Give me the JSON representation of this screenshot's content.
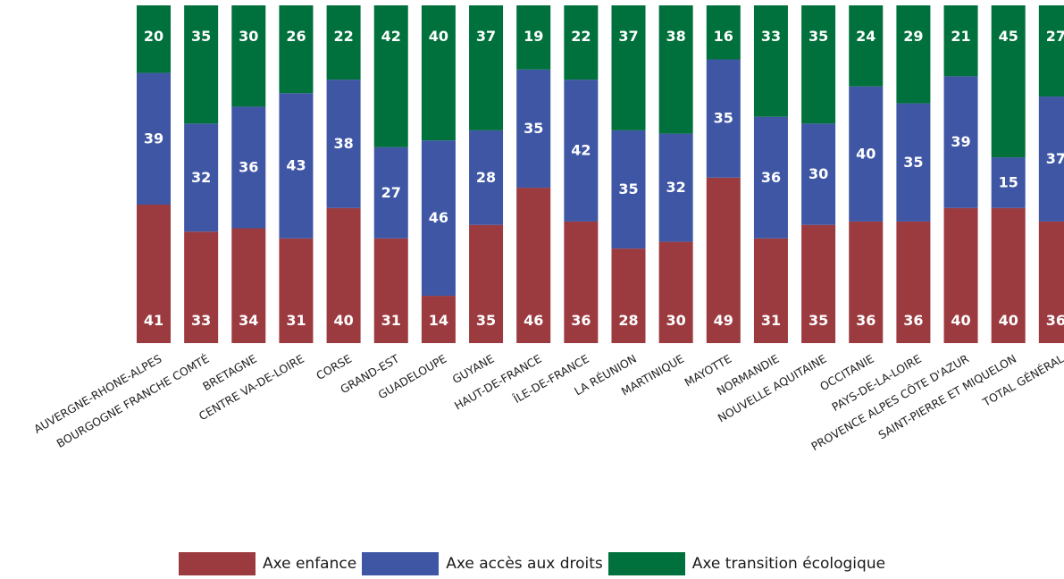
{
  "chart_data": {
    "type": "bar",
    "stacked": true,
    "normalized_percent": true,
    "categories": [
      "AUVERGNE-RHONE-ALPES",
      "BOURGOGNE FRANCHE COMTÉ",
      "BRETAGNE",
      "CENTRE VA-DE-LOIRE",
      "CORSE",
      "GRAND-EST",
      "GUADELOUPE",
      "GUYANE",
      "HAUT-DE-FRANCE",
      "ÎLE-DE-FRANCE",
      "LA RÉUNION",
      "MARTINIQUE",
      "MAYOTTE",
      "NORMANDIE",
      "NOUVELLE AQUITAINE",
      "OCCITANIE",
      "PAYS-DE-LA-LOIRE",
      "PROVENCE ALPES CÔTE D'AZUR",
      "SAINT-PIERRE ET MIQUELON",
      "TOTAL GÉNÉRAL"
    ],
    "series": [
      {
        "name": "Axe enfance",
        "color": "#9B3A3F",
        "values": [
          41,
          33,
          34,
          31,
          40,
          31,
          14,
          35,
          46,
          36,
          28,
          30,
          49,
          31,
          35,
          36,
          36,
          40,
          40,
          36
        ]
      },
      {
        "name": "Axe accès aux droits",
        "color": "#3E56A4",
        "values": [
          39,
          32,
          36,
          43,
          38,
          27,
          46,
          28,
          35,
          42,
          35,
          32,
          35,
          36,
          30,
          40,
          35,
          39,
          15,
          37
        ]
      },
      {
        "name": "Axe transition écologique",
        "color": "#00703C",
        "values": [
          20,
          35,
          30,
          26,
          22,
          42,
          40,
          37,
          19,
          22,
          37,
          38,
          16,
          33,
          35,
          24,
          29,
          21,
          45,
          27
        ]
      }
    ],
    "ylim": [
      0,
      100
    ],
    "grid": false,
    "legend_position": "bottom"
  }
}
